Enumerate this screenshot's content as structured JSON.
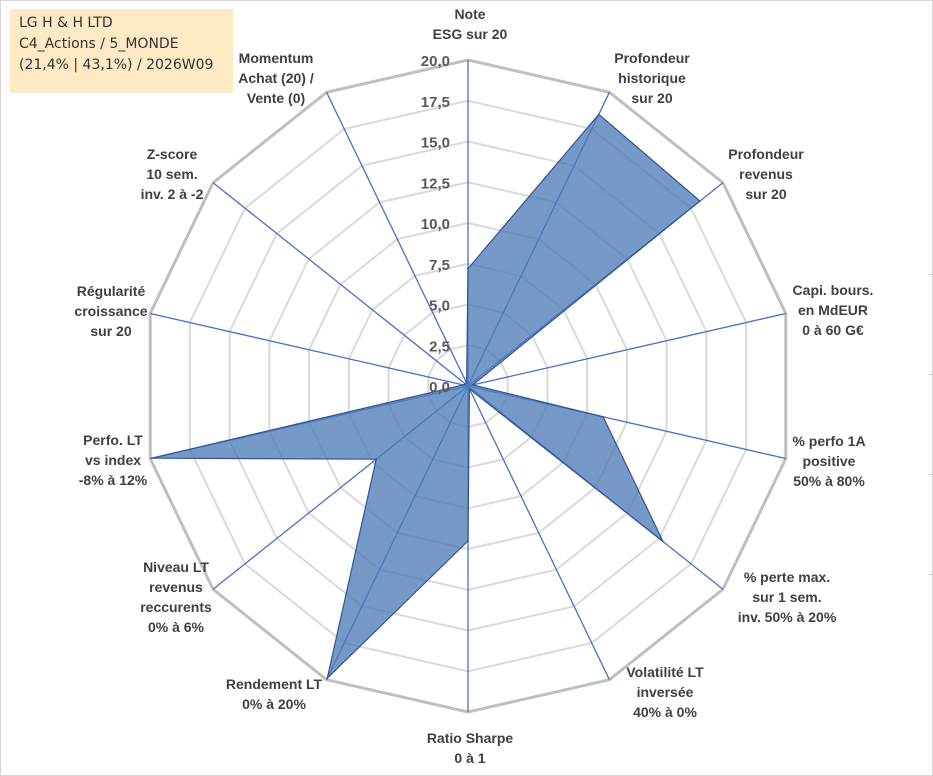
{
  "info_box": {
    "line1": "LG H & H LTD",
    "line2": "C4_Actions / 5_MONDE",
    "line3": "(21,4% | 43,1%) / 2026W09"
  },
  "colors": {
    "fill": "#4f7cb7",
    "stroke": "#2f5597",
    "spoke": "#4472c4",
    "grid": "#d9d9d9",
    "outer_ring": "#bfbfbf",
    "text": "#404040"
  },
  "chart_data": {
    "type": "radar",
    "title": "",
    "rmin": 0,
    "rmax": 20,
    "ticks": [
      "0,0",
      "2,5",
      "5,0",
      "7,5",
      "10,0",
      "12,5",
      "15,0",
      "17,5",
      "20,0"
    ],
    "grid": true,
    "axes": [
      [
        "Note",
        "ESG sur 20"
      ],
      [
        "Profondeur",
        "historique",
        "sur 20"
      ],
      [
        "Profondeur",
        "revenus",
        "sur 20"
      ],
      [
        "Capi. bours.",
        "en MdEUR",
        "0 à 60 G€"
      ],
      [
        "% perfo 1A",
        "positive",
        "50% à 80%"
      ],
      [
        "% perte max.",
        "sur 1 sem.",
        "inv. 50% à 20%"
      ],
      [
        "Volatilité LT",
        "inversée",
        "40% à 0%"
      ],
      [
        "Ratio Sharpe",
        "0 à 1"
      ],
      [
        "Rendement LT",
        "0% à 20%"
      ],
      [
        "Niveau LT",
        "revenus",
        "reccurents",
        "0% à 6%"
      ],
      [
        "Perfo. LT",
        "vs index",
        "-8% à 12%"
      ],
      [
        "Régularité",
        "croissance",
        "sur 20"
      ],
      [
        "Z-score",
        "10 sem.",
        "inv. 2 à -2"
      ],
      [
        "Momentum",
        "Achat (20) /",
        "Vente (0)"
      ]
    ],
    "series": [
      {
        "values": [
          7.2,
          18.5,
          18.2,
          0.3,
          8.5,
          15.3,
          0.2,
          9.5,
          19.9,
          7.2,
          19.9,
          0.3,
          0.2,
          0.2
        ]
      }
    ]
  }
}
